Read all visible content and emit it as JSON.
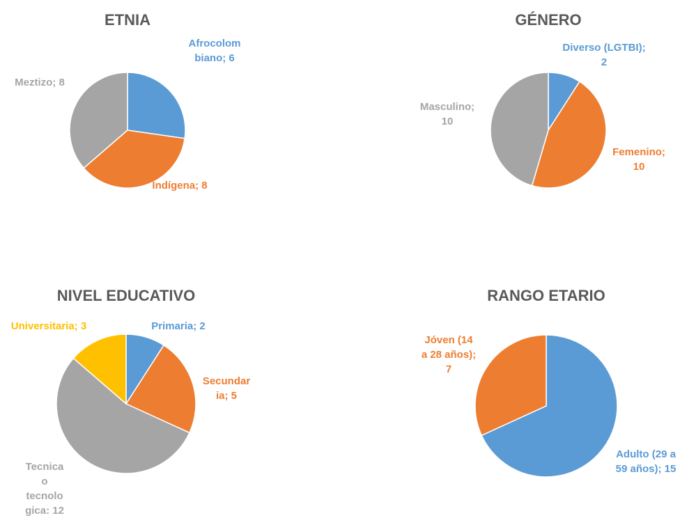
{
  "chart_data": [
    {
      "type": "pie",
      "title": "ETNIA",
      "values": [
        6,
        8,
        8
      ],
      "value_labels": [
        "Afrocolombiano; 6",
        "Indígena; 8",
        "Meztizo; 8"
      ],
      "colors": [
        "#5b9bd5",
        "#ed7d31",
        "#a5a5a5"
      ]
    },
    {
      "type": "pie",
      "title": "GÉNERO",
      "values": [
        2,
        10,
        10
      ],
      "value_labels": [
        "Diverso (LGTBI); 2",
        "Femenino; 10",
        "Masculino; 10"
      ],
      "colors": [
        "#5b9bd5",
        "#ed7d31",
        "#a5a5a5"
      ]
    },
    {
      "type": "pie",
      "title": "NIVEL EDUCATIVO",
      "values": [
        2,
        5,
        12,
        3
      ],
      "value_labels": [
        "Primaria; 2",
        "Secundaria; 5",
        "Tecnica o tecnologica: 12",
        "Universitaria; 3"
      ],
      "colors": [
        "#5b9bd5",
        "#ed7d31",
        "#a5a5a5",
        "#ffc000"
      ]
    },
    {
      "type": "pie",
      "title": "RANGO ETARIO",
      "values": [
        15,
        7
      ],
      "value_labels": [
        "Adulto (29 a 59 años); 15",
        "Jóven (14 a 28 años); 7"
      ],
      "colors": [
        "#5b9bd5",
        "#ed7d31"
      ]
    }
  ]
}
